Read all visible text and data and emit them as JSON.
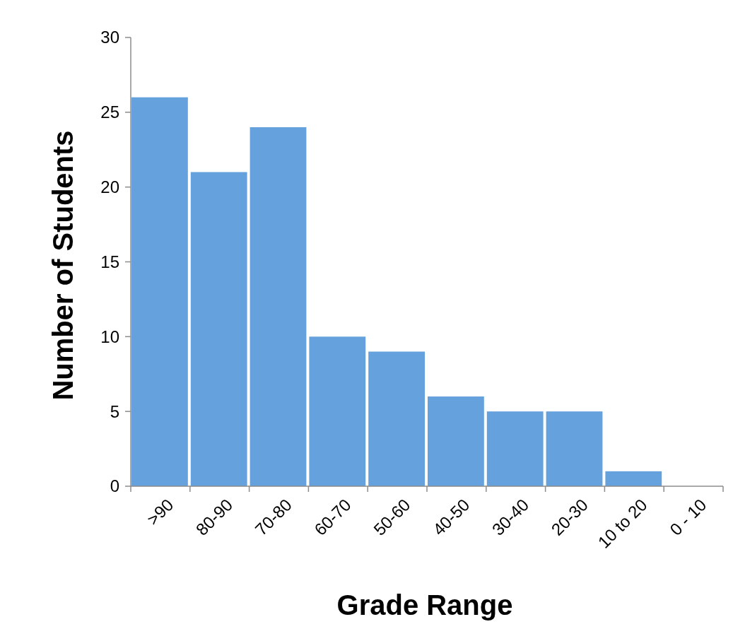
{
  "chart_data": {
    "type": "bar",
    "xlabel": "Grade Range",
    "ylabel": "Number of Students",
    "categories": [
      ">90",
      "80-90",
      "70-80",
      "60-70",
      "50-60",
      "40-50",
      "30-40",
      "20-30",
      "10 to 20",
      "0 - 10"
    ],
    "values": [
      26,
      21,
      24,
      10,
      9,
      6,
      5,
      5,
      1,
      0
    ],
    "color": "#65a1dc",
    "ylim": [
      0,
      30
    ],
    "yticks": [
      0,
      5,
      10,
      15,
      20,
      25,
      30
    ],
    "grid": false
  }
}
